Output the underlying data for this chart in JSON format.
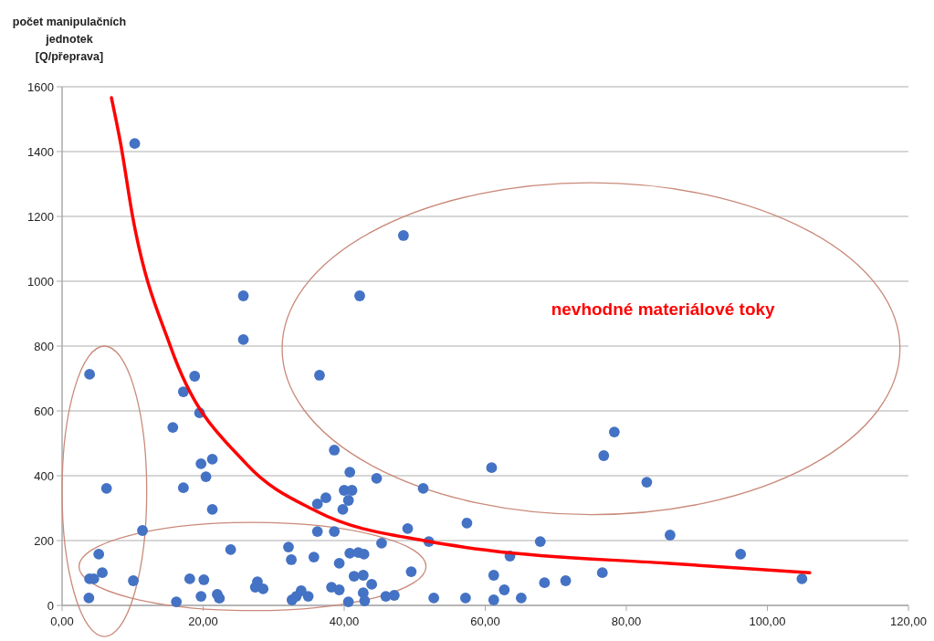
{
  "chart_data": {
    "type": "scatter",
    "ylabel": "počet manipulačních jednotek [Q/přeprava]",
    "annotations": [
      "nevhodné materiálové toky"
    ],
    "xlim": [
      0,
      120
    ],
    "xticks": [
      {
        "value": 0,
        "label": "0,00"
      },
      {
        "value": 20,
        "label": "20,00"
      },
      {
        "value": 40,
        "label": "40,00"
      },
      {
        "value": 60,
        "label": "60,00"
      },
      {
        "value": 80,
        "label": "80,00"
      },
      {
        "value": 100,
        "label": "100,00"
      },
      {
        "value": 120,
        "label": "120,00"
      }
    ],
    "ylim": [
      0,
      1600
    ],
    "yticks": [
      0,
      200,
      400,
      600,
      800,
      1000,
      1200,
      1400,
      1600
    ],
    "grid": "y",
    "marker": "circle",
    "series": [
      {
        "color": "#4472c4",
        "x": [
          3.9,
          10.3,
          6.3,
          11.4,
          5.2,
          3.9,
          4.5,
          5.7,
          3.8,
          10.1,
          16.2,
          17.2,
          18.8,
          19.5,
          15.7,
          19.7,
          21.3,
          20.4,
          17.2,
          21.3,
          23.9,
          18.1,
          20.1,
          19.7,
          22.0,
          22.3,
          27.7,
          28.5,
          27.4,
          36.5,
          38.6,
          40.8,
          44.6,
          51.2,
          40.0,
          41.1,
          37.4,
          36.2,
          40.6,
          39.8,
          36.2,
          38.6,
          49.0,
          45.3,
          52.0,
          32.1,
          32.5,
          35.7,
          39.3,
          40.8,
          42.0,
          42.8,
          49.5,
          41.4,
          42.7,
          43.9,
          38.2,
          39.3,
          33.9,
          32.6,
          33.2,
          34.9,
          40.6,
          42.7,
          42.9,
          45.9,
          47.1,
          52.7,
          60.9,
          76.8,
          78.3,
          82.9,
          57.4,
          67.8,
          63.5,
          86.2,
          61.2,
          62.7,
          68.4,
          71.4,
          76.6,
          57.2,
          61.2,
          65.1,
          96.2,
          104.9,
          25.7,
          42.2,
          48.4,
          25.7
        ],
        "values": [
          713,
          1425,
          361,
          231,
          158,
          82,
          82,
          101,
          23,
          76,
          11,
          659,
          707,
          594,
          549,
          437,
          451,
          397,
          363,
          296,
          172,
          82,
          79,
          28,
          34,
          22,
          73,
          51,
          56,
          710,
          479,
          411,
          392,
          361,
          355,
          355,
          332,
          313,
          324,
          296,
          228,
          228,
          237,
          192,
          197,
          180,
          141,
          149,
          130,
          161,
          163,
          158,
          104,
          90,
          93,
          65,
          56,
          48,
          45,
          17,
          28,
          28,
          11,
          39,
          14,
          28,
          31,
          23,
          425,
          462,
          535,
          380,
          254,
          197,
          152,
          217,
          93,
          48,
          70,
          76,
          101,
          23,
          17,
          23,
          158,
          82,
          955,
          955,
          1141,
          820
        ]
      },
      {
        "type": "line",
        "color": "#ff0000",
        "line_style": "solid",
        "marker": "none",
        "x": [
          7.0,
          8.3,
          10.0,
          15.4,
          26.1,
          36.1,
          52.0,
          60.7,
          85.6,
          106.0
        ],
        "values": [
          1566,
          1425,
          1200,
          797,
          437,
          290,
          197,
          169,
          130,
          101
        ]
      }
    ]
  }
}
